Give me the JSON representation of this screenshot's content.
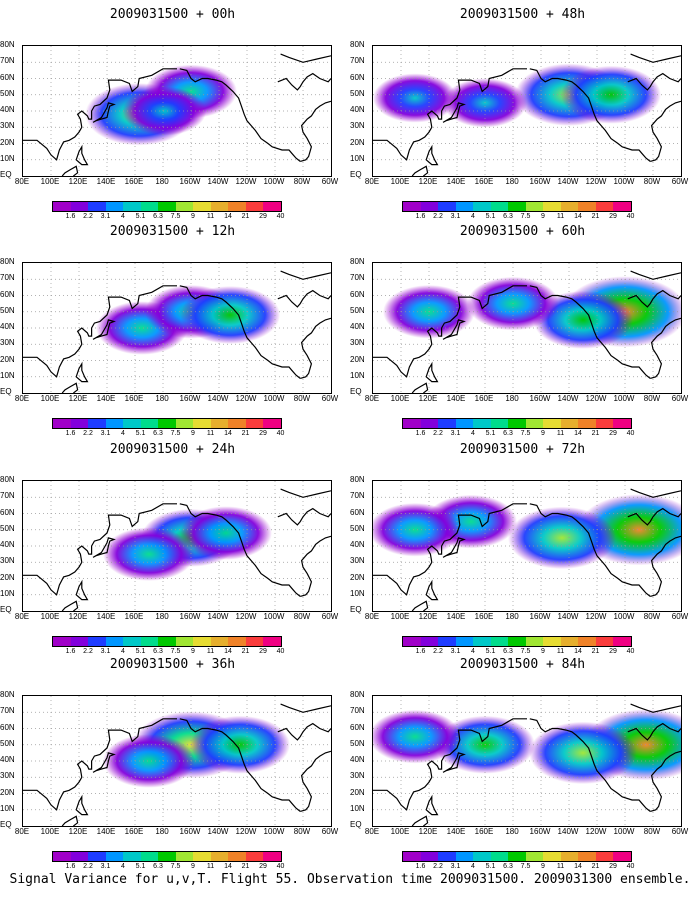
{
  "caption": "Signal Variance for u,v,T. Flight 55. Observation time 2009031500. 2009031300 ensemble.",
  "lat_labels": [
    "80N",
    "70N",
    "60N",
    "50N",
    "40N",
    "30N",
    "20N",
    "10N",
    "EQ"
  ],
  "lon_labels": [
    "80E",
    "100E",
    "120E",
    "140E",
    "160E",
    "180",
    "160W",
    "140W",
    "120W",
    "100W",
    "80W",
    "60W"
  ],
  "colorbar": {
    "levels": [
      "1.6",
      "2.2",
      "3.1",
      "4",
      "5.1",
      "6.3",
      "7.5",
      "9",
      "11",
      "14",
      "21",
      "29",
      "40"
    ],
    "colors": [
      "#a000c8",
      "#8200dc",
      "#1e3cff",
      "#0096ff",
      "#00c8c8",
      "#00dc8c",
      "#00c800",
      "#a0e632",
      "#e6dc32",
      "#e6af2d",
      "#f08228",
      "#fa3c3c",
      "#f00082"
    ]
  },
  "panels": [
    {
      "title": "2009031500 + 00h",
      "blobs": [
        {
          "lon": 163,
          "lat": 38,
          "intensity": 0.6
        },
        {
          "lon": 200,
          "lat": 52,
          "intensity": 0.4
        },
        {
          "lon": 181,
          "lat": 40,
          "intensity": 0.3
        }
      ]
    },
    {
      "title": "2009031500 + 48h",
      "blobs": [
        {
          "lon": 220,
          "lat": 50,
          "intensity": 0.6
        },
        {
          "lon": 250,
          "lat": 50,
          "intensity": 0.5
        },
        {
          "lon": 160,
          "lat": 45,
          "intensity": 0.3
        },
        {
          "lon": 110,
          "lat": 48,
          "intensity": 0.3
        }
      ]
    },
    {
      "title": "2009031500 + 12h",
      "blobs": [
        {
          "lon": 165,
          "lat": 40,
          "intensity": 0.4
        },
        {
          "lon": 200,
          "lat": 50,
          "intensity": 0.4
        },
        {
          "lon": 228,
          "lat": 48,
          "intensity": 0.5
        }
      ]
    },
    {
      "title": "2009031500 + 60h",
      "blobs": [
        {
          "lon": 260,
          "lat": 50,
          "intensity": 0.8
        },
        {
          "lon": 230,
          "lat": 45,
          "intensity": 0.5
        },
        {
          "lon": 180,
          "lat": 55,
          "intensity": 0.4
        },
        {
          "lon": 120,
          "lat": 50,
          "intensity": 0.4
        }
      ]
    },
    {
      "title": "2009031500 + 24h",
      "blobs": [
        {
          "lon": 200,
          "lat": 45,
          "intensity": 0.5
        },
        {
          "lon": 170,
          "lat": 35,
          "intensity": 0.4
        },
        {
          "lon": 225,
          "lat": 48,
          "intensity": 0.4
        }
      ]
    },
    {
      "title": "2009031500 + 72h",
      "blobs": [
        {
          "lon": 270,
          "lat": 50,
          "intensity": 0.8
        },
        {
          "lon": 215,
          "lat": 45,
          "intensity": 0.6
        },
        {
          "lon": 150,
          "lat": 55,
          "intensity": 0.4
        },
        {
          "lon": 110,
          "lat": 50,
          "intensity": 0.4
        }
      ]
    },
    {
      "title": "2009031500 + 36h",
      "blobs": [
        {
          "lon": 200,
          "lat": 50,
          "intensity": 0.7
        },
        {
          "lon": 235,
          "lat": 50,
          "intensity": 0.5
        },
        {
          "lon": 170,
          "lat": 40,
          "intensity": 0.4
        }
      ]
    },
    {
      "title": "2009031500 + 84h",
      "blobs": [
        {
          "lon": 275,
          "lat": 50,
          "intensity": 0.8
        },
        {
          "lon": 230,
          "lat": 45,
          "intensity": 0.6
        },
        {
          "lon": 160,
          "lat": 50,
          "intensity": 0.5
        },
        {
          "lon": 110,
          "lat": 55,
          "intensity": 0.4
        }
      ]
    }
  ]
}
